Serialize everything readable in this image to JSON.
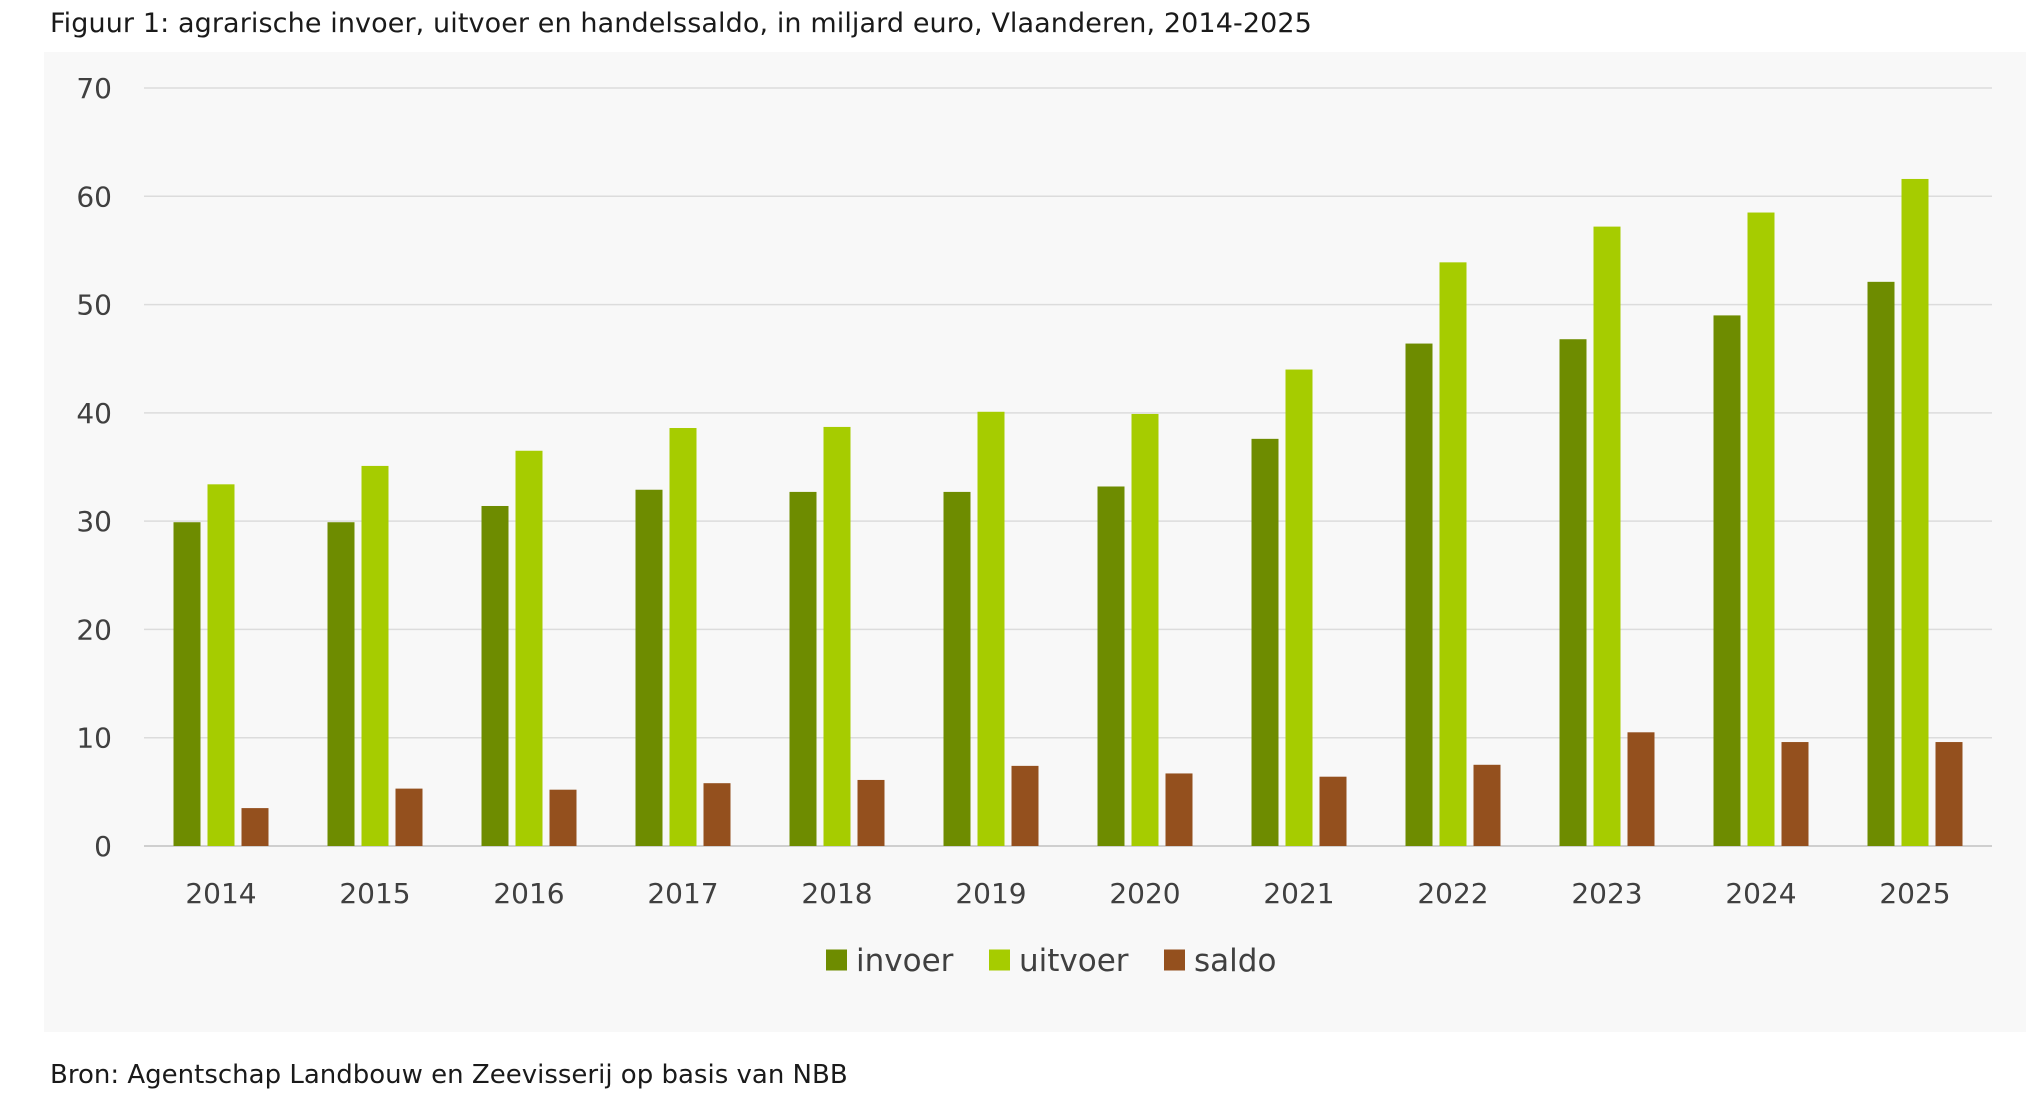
{
  "figure": {
    "title": "Figuur 1: agrarische invoer, uitvoer en handelssaldo, in miljard euro, Vlaanderen, 2014-2025",
    "source": "Bron: Agentschap Landbouw en Zeevisserij op basis van NBB"
  },
  "chart_data": {
    "type": "bar",
    "title": "Figuur 1: agrarische invoer, uitvoer en handelssaldo, in miljard euro, Vlaanderen, 2014-2025",
    "xlabel": "",
    "ylabel": "",
    "ylim": [
      0,
      70
    ],
    "yticks": [
      0,
      10,
      20,
      30,
      40,
      50,
      60,
      70
    ],
    "grid": true,
    "legend_position": "bottom",
    "categories": [
      "2014",
      "2015",
      "2016",
      "2017",
      "2018",
      "2019",
      "2020",
      "2021",
      "2022",
      "2023",
      "2024",
      "2025"
    ],
    "series": [
      {
        "name": "invoer",
        "color": "#6e8c00",
        "values": [
          29.9,
          29.9,
          31.4,
          32.9,
          32.7,
          32.7,
          33.2,
          37.6,
          46.4,
          46.8,
          49.0,
          52.1
        ]
      },
      {
        "name": "uitvoer",
        "color": "#a6cc00",
        "values": [
          33.4,
          35.1,
          36.5,
          38.6,
          38.7,
          40.1,
          39.9,
          44.0,
          53.9,
          57.2,
          58.5,
          61.6
        ]
      },
      {
        "name": "saldo",
        "color": "#94501e",
        "values": [
          3.5,
          5.3,
          5.2,
          5.8,
          6.1,
          7.4,
          6.7,
          6.4,
          7.5,
          10.5,
          9.6,
          9.6
        ]
      }
    ]
  }
}
